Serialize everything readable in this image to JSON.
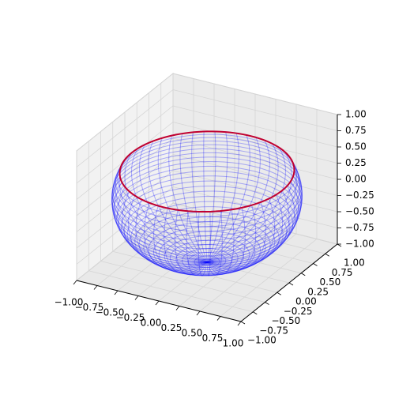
{
  "chart_data": {
    "type": "sphere-wireframe",
    "xlim": [
      -1,
      1
    ],
    "ylim": [
      -1,
      1
    ],
    "zlim": [
      -1,
      1
    ],
    "xticks": [
      {
        "value": -1,
        "label": "−1.00"
      },
      {
        "value": -0.75,
        "label": "−0.75"
      },
      {
        "value": -0.5,
        "label": "−0.50"
      },
      {
        "value": -0.25,
        "label": "−0.25"
      },
      {
        "value": 0,
        "label": "0.00"
      },
      {
        "value": 0.25,
        "label": "0.25"
      },
      {
        "value": 0.5,
        "label": "0.50"
      },
      {
        "value": 0.75,
        "label": "0.75"
      },
      {
        "value": 1,
        "label": "1.00"
      }
    ],
    "yticks": [
      {
        "value": -1,
        "label": "−1.00"
      },
      {
        "value": -0.75,
        "label": "−0.75"
      },
      {
        "value": -0.5,
        "label": "−0.50"
      },
      {
        "value": -0.25,
        "label": "−0.25"
      },
      {
        "value": 0,
        "label": "0.00"
      },
      {
        "value": 0.25,
        "label": "0.25"
      },
      {
        "value": 0.5,
        "label": "0.50"
      },
      {
        "value": 0.75,
        "label": "0.75"
      },
      {
        "value": 1,
        "label": "1.00"
      }
    ],
    "zticks": [
      {
        "value": -1,
        "label": "−1.00"
      },
      {
        "value": -0.75,
        "label": "−0.75"
      },
      {
        "value": -0.5,
        "label": "−0.50"
      },
      {
        "value": -0.25,
        "label": "−0.25"
      },
      {
        "value": 0,
        "label": "0.00"
      },
      {
        "value": 0.25,
        "label": "0.25"
      },
      {
        "value": 0.5,
        "label": "0.50"
      },
      {
        "value": 0.75,
        "label": "0.75"
      },
      {
        "value": 1,
        "label": "1.00"
      }
    ],
    "surface": {
      "radius": 1,
      "z_max": 0.4,
      "color": "blue"
    },
    "ring": {
      "z": 0.4,
      "color": "#c00030"
    },
    "grid": true
  }
}
